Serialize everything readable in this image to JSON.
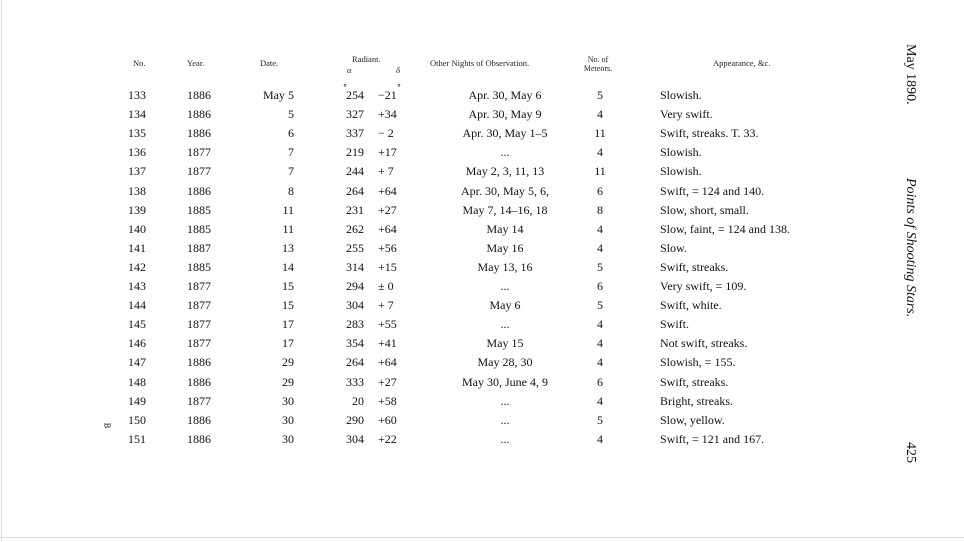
{
  "running_head": {
    "date": "May 1890.",
    "title": "Points of Shooting Stars.",
    "page_number": "425"
  },
  "margin_mark": "B",
  "table": {
    "headers": {
      "no": "No.",
      "year": "Year.",
      "date": "Date.",
      "radiant": "Radiant.",
      "alpha": "α",
      "delta": "δ",
      "other_nights": "Other Nights of Observation.",
      "meteors": "No. of Meteors.",
      "appearance": "Appearance, &c."
    },
    "degree_marks": {
      "alpha": "°",
      "delta": "°"
    },
    "rows": [
      {
        "no": "133",
        "year": "1886",
        "date": "May 5",
        "ra": "254",
        "dec": "−21",
        "nights": "Apr. 30, May 6",
        "meteors": "5",
        "appearance": "Slowish."
      },
      {
        "no": "134",
        "year": "1886",
        "date": "5",
        "ra": "327",
        "dec": "+34",
        "nights": "Apr. 30, May 9",
        "meteors": "4",
        "appearance": "Very swift."
      },
      {
        "no": "135",
        "year": "1886",
        "date": "6",
        "ra": "337",
        "dec": "− 2",
        "nights": "Apr. 30, May 1–5",
        "meteors": "11",
        "appearance": "Swift, streaks.   T. 33."
      },
      {
        "no": "136",
        "year": "1877",
        "date": "7",
        "ra": "219",
        "dec": "+17",
        "nights": "...",
        "meteors": "4",
        "appearance": "Slowish."
      },
      {
        "no": "137",
        "year": "1877",
        "date": "7",
        "ra": "244",
        "dec": "+ 7",
        "nights": "May 2, 3, 11, 13",
        "meteors": "11",
        "appearance": "Slowish."
      },
      {
        "no": "138",
        "year": "1886",
        "date": "8",
        "ra": "264",
        "dec": "+64",
        "nights": "Apr. 30, May 5, 6,",
        "meteors": "6",
        "appearance": "Swift, = 124 and 140."
      },
      {
        "no": "139",
        "year": "1885",
        "date": "11",
        "ra": "231",
        "dec": "+27",
        "nights": "May 7, 14–16, 18",
        "meteors": "8",
        "appearance": "Slow, short, small."
      },
      {
        "no": "140",
        "year": "1885",
        "date": "11",
        "ra": "262",
        "dec": "+64",
        "nights": "May 14",
        "meteors": "4",
        "appearance": "Slow, faint, = 124 and 138."
      },
      {
        "no": "141",
        "year": "1887",
        "date": "13",
        "ra": "255",
        "dec": "+56",
        "nights": "May 16",
        "meteors": "4",
        "appearance": "Slow."
      },
      {
        "no": "142",
        "year": "1885",
        "date": "14",
        "ra": "314",
        "dec": "+15",
        "nights": "May 13, 16",
        "meteors": "5",
        "appearance": "Swift, streaks."
      },
      {
        "no": "143",
        "year": "1877",
        "date": "15",
        "ra": "294",
        "dec": "± 0",
        "nights": "...",
        "meteors": "6",
        "appearance": "Very swift, = 109."
      },
      {
        "no": "144",
        "year": "1877",
        "date": "15",
        "ra": "304",
        "dec": "+ 7",
        "nights": "May 6",
        "meteors": "5",
        "appearance": "Swift, white."
      },
      {
        "no": "145",
        "year": "1877",
        "date": "17",
        "ra": "283",
        "dec": "+55",
        "nights": "...",
        "meteors": "4",
        "appearance": "Swift."
      },
      {
        "no": "146",
        "year": "1877",
        "date": "17",
        "ra": "354",
        "dec": "+41",
        "nights": "May 15",
        "meteors": "4",
        "appearance": "Not swift, streaks."
      },
      {
        "no": "147",
        "year": "1886",
        "date": "29",
        "ra": "264",
        "dec": "+64",
        "nights": "May 28, 30",
        "meteors": "4",
        "appearance": "Slowish, = 155."
      },
      {
        "no": "148",
        "year": "1886",
        "date": "29",
        "ra": "333",
        "dec": "+27",
        "nights": "May 30, June 4, 9",
        "meteors": "6",
        "appearance": "Swift, streaks."
      },
      {
        "no": "149",
        "year": "1877",
        "date": "30",
        "ra": "20",
        "dec": "+58",
        "nights": "...",
        "meteors": "4",
        "appearance": "Bright, streaks."
      },
      {
        "no": "150",
        "year": "1886",
        "date": "30",
        "ra": "290",
        "dec": "+60",
        "nights": "...",
        "meteors": "5",
        "appearance": "Slow, yellow."
      },
      {
        "no": "151",
        "year": "1886",
        "date": "30",
        "ra": "304",
        "dec": "+22",
        "nights": "...",
        "meteors": "4",
        "appearance": "Swift, = 121 and 167."
      }
    ]
  }
}
